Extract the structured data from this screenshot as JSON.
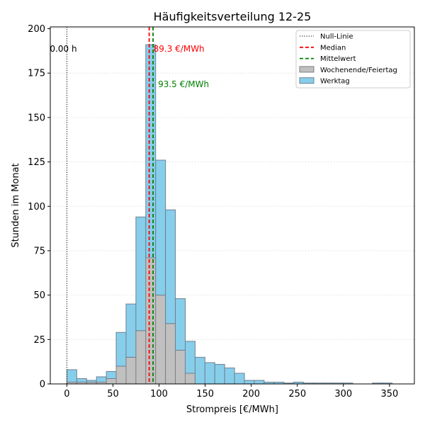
{
  "chart_data": {
    "type": "bar",
    "title": "Häufigkeitsverteilung 12-25",
    "xlabel": "Strompreis [€/MWh]",
    "ylabel": "Stunden im Monat",
    "xlim": [
      -18,
      377
    ],
    "ylim": [
      0,
      201
    ],
    "xticks": [
      0,
      50,
      100,
      150,
      200,
      250,
      300,
      350
    ],
    "yticks": [
      0,
      25,
      50,
      75,
      100,
      125,
      150,
      175,
      200
    ],
    "grid": "horizontal-dotted",
    "legend_position": "top-right",
    "bin_width": 10.7,
    "bin_starts": [
      0,
      10.7,
      21.4,
      32.1,
      42.8,
      53.5,
      64.2,
      74.9,
      85.6,
      96.3,
      107.0,
      117.7,
      128.4,
      139.1,
      149.8,
      160.5,
      171.2,
      181.9,
      192.6,
      203.3,
      214.0,
      224.7,
      235.4,
      245.9,
      256.6,
      267.3,
      278.0,
      288.7,
      299.4,
      310.1,
      320.8,
      331.5,
      342.2
    ],
    "series": [
      {
        "name": "Wochenende/Feiertag",
        "color": "#c0c0c0",
        "values": [
          1,
          1,
          1,
          1,
          3,
          10,
          15,
          30,
          71,
          50,
          34,
          19,
          6,
          0,
          0,
          0,
          0,
          0,
          0,
          0,
          0,
          0,
          0,
          0,
          0,
          0,
          0,
          0,
          0,
          0,
          0,
          0,
          0
        ]
      },
      {
        "name": "Werktag",
        "color": "#87ceeb",
        "values": [
          7,
          2,
          1,
          3,
          4,
          19,
          30,
          64,
          120,
          76,
          64,
          29,
          18,
          15,
          12,
          11,
          9,
          6,
          2,
          2,
          1,
          1,
          0.5,
          1,
          0.5,
          0.5,
          0.5,
          0.5,
          0.5,
          0,
          0,
          0.5,
          0.5
        ]
      }
    ],
    "reference_lines": [
      {
        "name": "Null-Linie",
        "x": 0,
        "color": "#000000",
        "style": "dotted",
        "annotation": "0.00 h"
      },
      {
        "name": "Median",
        "x": 89.3,
        "color": "#ff0000",
        "style": "dashed",
        "annotation": "89.3 €/MWh"
      },
      {
        "name": "Mittelwert",
        "x": 93.5,
        "color": "#008000",
        "style": "dashed",
        "annotation": "93.5 €/MWh"
      }
    ],
    "legend": [
      "Null-Linie",
      "Median",
      "Mittelwert",
      "Wochenende/Feiertag",
      "Werktag"
    ]
  }
}
